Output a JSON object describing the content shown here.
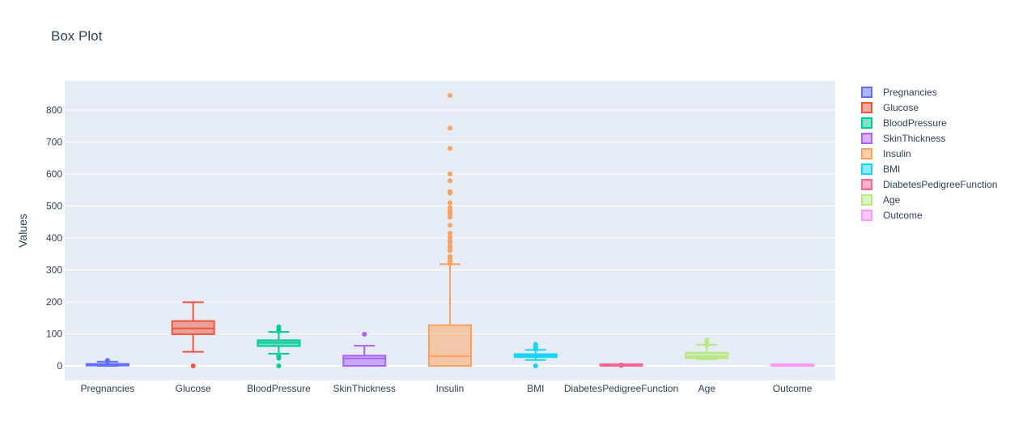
{
  "chart_data": {
    "type": "box",
    "title": "Box Plot",
    "xlabel": "",
    "ylabel": "Values",
    "ylim": [
      -45,
      890
    ],
    "yticks": [
      0,
      100,
      200,
      300,
      400,
      500,
      600,
      700,
      800
    ],
    "grid": true,
    "legend_position": "right",
    "series": [
      {
        "name": "Pregnancies",
        "color": "#636efa",
        "min": 0,
        "q1": 1,
        "median": 3,
        "q3": 6,
        "max": 13,
        "outliers": [
          14,
          15,
          17
        ]
      },
      {
        "name": "Glucose",
        "color": "#ef553b",
        "min": 44,
        "q1": 99,
        "median": 117,
        "q3": 140.25,
        "max": 199,
        "outliers": [
          0
        ]
      },
      {
        "name": "BloodPressure",
        "color": "#00cc96",
        "min": 38,
        "q1": 62,
        "median": 72,
        "q3": 80,
        "max": 106,
        "outliers": [
          0,
          24,
          30,
          108,
          110,
          114,
          122
        ]
      },
      {
        "name": "SkinThickness",
        "color": "#ab63fa",
        "min": 0,
        "q1": 0,
        "median": 23,
        "q3": 32,
        "max": 63,
        "outliers": [
          99
        ]
      },
      {
        "name": "Insulin",
        "color": "#ffa15a",
        "min": 0,
        "q1": 0,
        "median": 30.5,
        "q3": 127.25,
        "max": 318,
        "outliers": [
          321,
          325,
          326,
          330,
          335,
          342,
          360,
          370,
          375,
          387,
          392,
          402,
          415,
          440,
          465,
          474,
          478,
          480,
          485,
          495,
          510,
          540,
          545,
          579,
          600,
          680,
          744,
          846
        ]
      },
      {
        "name": "BMI",
        "color": "#19d3f3",
        "min": 18.2,
        "q1": 27.3,
        "median": 32,
        "q3": 36.6,
        "max": 50,
        "outliers": [
          0,
          52.3,
          53.2,
          55,
          57.3,
          59.4,
          67.1
        ]
      },
      {
        "name": "DiabetesPedigreeFunction",
        "color": "#ff6692",
        "min": 0.078,
        "q1": 0.24,
        "median": 0.37,
        "q3": 0.63,
        "max": 1.19,
        "outliers": [
          1.2,
          1.4,
          1.7,
          2.1,
          2.42
        ]
      },
      {
        "name": "Age",
        "color": "#b6e880",
        "min": 21,
        "q1": 24,
        "median": 29,
        "q3": 41,
        "max": 66,
        "outliers": [
          67,
          69,
          70,
          72,
          81
        ]
      },
      {
        "name": "Outcome",
        "color": "#ff97ff",
        "min": 0,
        "q1": 0,
        "median": 0,
        "q3": 1,
        "max": 1,
        "outliers": []
      }
    ]
  }
}
